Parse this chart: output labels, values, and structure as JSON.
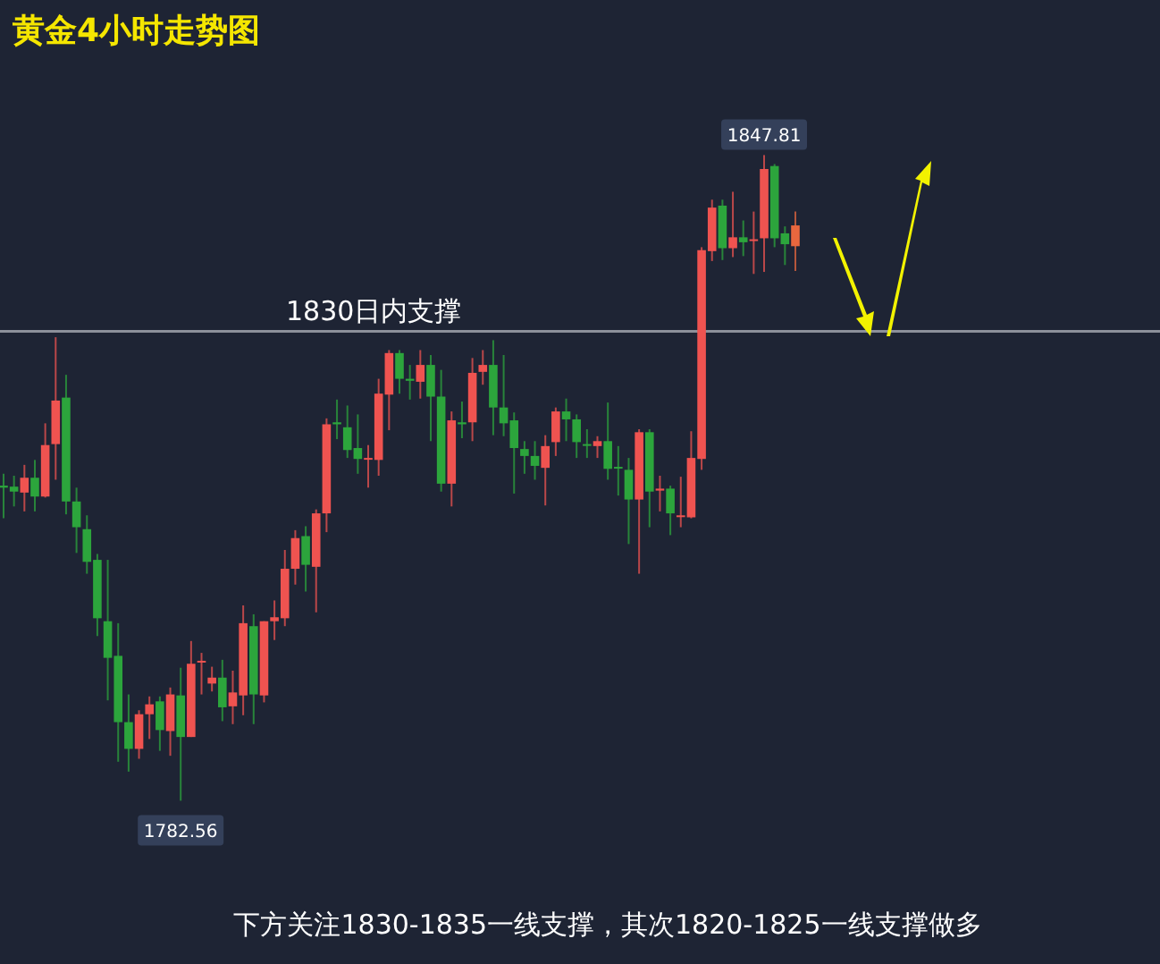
{
  "chart_data": {
    "type": "candlestick",
    "title": "黄金4小时走势图",
    "annotations": [
      {
        "text": "1847.81",
        "y": 1847.81
      },
      {
        "text": "1782.56",
        "y": 1782.56
      },
      "下方关注1830-1835一线支撑，其次1820-1825一线支撑做多"
    ],
    "ref_lines": [
      {
        "axis": "y",
        "value": 1830,
        "label": "1830日内支撑",
        "color": "#8c909a"
      }
    ],
    "categories": [
      null,
      null,
      null,
      null,
      null,
      null,
      null,
      null,
      null,
      null,
      null,
      null,
      null,
      null,
      null,
      null,
      null,
      null,
      null,
      null,
      null,
      null,
      null,
      null,
      null,
      null,
      null,
      null,
      null,
      null,
      null,
      null,
      null,
      null,
      null,
      null,
      null,
      null,
      null,
      null,
      null,
      null,
      null,
      null,
      null,
      null,
      null,
      null,
      null,
      null,
      null,
      null,
      null,
      null,
      null,
      null,
      null,
      null,
      null,
      null,
      null,
      null,
      null,
      null,
      null,
      null,
      null,
      null,
      null,
      null,
      null,
      null,
      null,
      null,
      null,
      null,
      null
    ],
    "ohlc": [
      [
        1814.4,
        1815.6,
        1811.1,
        1814.2
      ],
      [
        1814.3,
        1815.4,
        1812.3,
        1813.8
      ],
      [
        1813.7,
        1816.5,
        1811.8,
        1815.2
      ],
      [
        1815.2,
        1817.0,
        1811.8,
        1813.3
      ],
      [
        1813.3,
        1820.7,
        1813.2,
        1818.5
      ],
      [
        1818.6,
        1829.4,
        1815.0,
        1823.0
      ],
      [
        1823.3,
        1825.6,
        1811.5,
        1812.8
      ],
      [
        1812.8,
        1814.2,
        1807.6,
        1810.2
      ],
      [
        1810.0,
        1811.4,
        1805.5,
        1806.7
      ],
      [
        1806.9,
        1807.5,
        1799.2,
        1801.0
      ],
      [
        1800.7,
        1806.9,
        1792.7,
        1797.0
      ],
      [
        1797.2,
        1800.5,
        1786.5,
        1790.5
      ],
      [
        1790.5,
        1793.3,
        1785.5,
        1787.8
      ],
      [
        1787.8,
        1791.7,
        1786.8,
        1791.3
      ],
      [
        1791.3,
        1793.1,
        1788.8,
        1792.3
      ],
      [
        1792.6,
        1793.1,
        1787.6,
        1789.7
      ],
      [
        1789.6,
        1794.0,
        1787.1,
        1793.3
      ],
      [
        1793.2,
        1796.0,
        1782.56,
        1789.0
      ],
      [
        1789.0,
        1798.7,
        1789.0,
        1796.4
      ],
      [
        1796.6,
        1797.5,
        1793.3,
        1796.7
      ],
      [
        1794.4,
        1796.1,
        1793.6,
        1795.0
      ],
      [
        1795.0,
        1796.8,
        1790.6,
        1792.0
      ],
      [
        1792.1,
        1795.7,
        1790.3,
        1793.5
      ],
      [
        1793.2,
        1802.3,
        1791.2,
        1800.5
      ],
      [
        1800.2,
        1801.4,
        1790.3,
        1793.3
      ],
      [
        1793.2,
        1800.7,
        1792.5,
        1800.7
      ],
      [
        1800.7,
        1802.8,
        1798.8,
        1801.1
      ],
      [
        1801.0,
        1807.9,
        1800.2,
        1806.0
      ],
      [
        1806.0,
        1809.9,
        1804.4,
        1809.1
      ],
      [
        1809.3,
        1810.3,
        1803.7,
        1806.4
      ],
      [
        1806.2,
        1812.0,
        1801.6,
        1811.6
      ],
      [
        1811.6,
        1821.2,
        1809.7,
        1820.6
      ],
      [
        1820.8,
        1823.1,
        1819.1,
        1820.6
      ],
      [
        1820.3,
        1822.5,
        1817.2,
        1818.0
      ],
      [
        1818.2,
        1821.6,
        1815.6,
        1817.1
      ],
      [
        1817.1,
        1818.5,
        1814.2,
        1817.2
      ],
      [
        1817.0,
        1825.2,
        1815.4,
        1823.7
      ],
      [
        1823.6,
        1828.1,
        1820.0,
        1827.8
      ],
      [
        1827.8,
        1828.1,
        1823.7,
        1825.2
      ],
      [
        1825.2,
        1826.6,
        1823.1,
        1825.0
      ],
      [
        1824.9,
        1828.1,
        1823.2,
        1826.6
      ],
      [
        1826.6,
        1827.6,
        1818.9,
        1823.4
      ],
      [
        1823.4,
        1826.1,
        1813.8,
        1814.6
      ],
      [
        1814.6,
        1821.9,
        1812.3,
        1821.0
      ],
      [
        1820.8,
        1822.9,
        1819.2,
        1820.6
      ],
      [
        1820.8,
        1827.3,
        1818.9,
        1825.8
      ],
      [
        1825.9,
        1828.1,
        1824.6,
        1826.6
      ],
      [
        1826.6,
        1829.1,
        1819.5,
        1822.3
      ],
      [
        1822.3,
        1827.6,
        1819.4,
        1820.7
      ],
      [
        1821.0,
        1821.8,
        1813.6,
        1818.2
      ],
      [
        1818.1,
        1818.9,
        1815.6,
        1817.4
      ],
      [
        1817.4,
        1818.9,
        1815.0,
        1816.4
      ],
      [
        1816.2,
        1819.5,
        1812.4,
        1818.4
      ],
      [
        1818.8,
        1822.3,
        1817.4,
        1821.9
      ],
      [
        1821.9,
        1823.2,
        1818.9,
        1821.1
      ],
      [
        1821.1,
        1821.6,
        1817.2,
        1818.8
      ],
      [
        1818.6,
        1820.1,
        1817.2,
        1818.5
      ],
      [
        1818.4,
        1819.4,
        1817.2,
        1818.9
      ],
      [
        1818.9,
        1822.8,
        1815.0,
        1816.1
      ],
      [
        1816.3,
        1818.4,
        1813.4,
        1816.2
      ],
      [
        1816.0,
        1817.2,
        1808.5,
        1813.0
      ],
      [
        1813.0,
        1820.1,
        1805.5,
        1819.8
      ],
      [
        1819.8,
        1820.1,
        1810.2,
        1813.8
      ],
      [
        1813.9,
        1815.4,
        1811.8,
        1814.1
      ],
      [
        1814.1,
        1814.4,
        1809.4,
        1811.6
      ],
      [
        1811.3,
        1815.3,
        1810.2,
        1811.4
      ],
      [
        1811.2,
        1819.9,
        1811.1,
        1817.2
      ],
      [
        1817.1,
        1838.5,
        1816.0,
        1838.2
      ],
      [
        1838.1,
        1843.3,
        1837.1,
        1842.5
      ],
      [
        1842.7,
        1843.3,
        1837.2,
        1838.4
      ],
      [
        1838.4,
        1844.1,
        1837.5,
        1839.5
      ],
      [
        1839.5,
        1841.2,
        1837.6,
        1839.0
      ],
      [
        1839.2,
        1842.1,
        1835.8,
        1839.3
      ],
      [
        1839.4,
        1847.81,
        1836.0,
        1846.4
      ],
      [
        1846.7,
        1846.9,
        1838.5,
        1839.4
      ],
      [
        1839.9,
        1840.6,
        1836.7,
        1838.8
      ],
      [
        1838.6,
        1842.1,
        1836.1,
        1840.7
      ]
    ],
    "colors": [
      "#2ca53c",
      "#2ca53c",
      "#ef5350",
      "#2ca53c",
      "#ef5350",
      "#ef5350",
      "#2ca53c",
      "#2ca53c",
      "#2ca53c",
      "#2ca53c",
      "#2ca53c",
      "#2ca53c",
      "#2ca53c",
      "#ef5350",
      "#ef5350",
      "#2ca53c",
      "#ef5350",
      "#2ca53c",
      "#ef5350",
      "#ef5350",
      "#ef5350",
      "#2ca53c",
      "#ef5350",
      "#ef5350",
      "#2ca53c",
      "#ef5350",
      "#ef5350",
      "#ef5350",
      "#ef5350",
      "#2ca53c",
      "#ef5350",
      "#ef5350",
      "#2ca53c",
      "#2ca53c",
      "#2ca53c",
      "#ef5350",
      "#ef5350",
      "#ef5350",
      "#2ca53c",
      "#2ca53c",
      "#ef5350",
      "#2ca53c",
      "#2ca53c",
      "#ef5350",
      "#2ca53c",
      "#ef5350",
      "#ef5350",
      "#2ca53c",
      "#2ca53c",
      "#2ca53c",
      "#2ca53c",
      "#2ca53c",
      "#ef5350",
      "#ef5350",
      "#2ca53c",
      "#2ca53c",
      "#2ca53c",
      "#ef5350",
      "#2ca53c",
      "#2ca53c",
      "#2ca53c",
      "#ef5350",
      "#2ca53c",
      "#ef5350",
      "#2ca53c",
      "#ef5350",
      "#ef5350",
      "#ef5350",
      "#ef5350",
      "#2ca53c",
      "#ef5350",
      "#2ca53c",
      "#ef5350",
      "#ef5350",
      "#2ca53c",
      "#2ca53c",
      "#e8673e"
    ]
  }
}
